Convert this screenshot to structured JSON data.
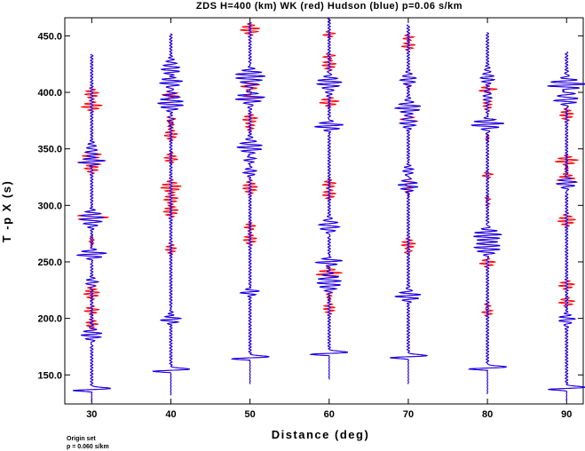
{
  "chart_data": {
    "type": "line",
    "title": "ZDS H=400 (km) WK (red) Hudson (blue) p=0.06 s/km",
    "xlabel": "Distance (deg)",
    "ylabel": "T -p X (s)",
    "xlim": [
      26.6,
      92.1
    ],
    "ylim": [
      124.3,
      466.0
    ],
    "xticks": [
      30,
      40,
      50,
      60,
      70,
      80,
      90
    ],
    "xtick_labels": [
      "30",
      "40",
      "50",
      "60",
      "70",
      "80",
      "90"
    ],
    "yticks": [
      150,
      200,
      250,
      300,
      350,
      400,
      450
    ],
    "ytick_labels": [
      "150.0",
      "200.0",
      "250.0",
      "300.0",
      "350.0",
      "400.0",
      "450.0"
    ],
    "grid": false,
    "series": [
      {
        "name": "WK",
        "color": "#ff0000"
      },
      {
        "name": "Hudson",
        "color": "#0000ff"
      }
    ],
    "traces": [
      {
        "distance": 30,
        "t_start": 126,
        "t_end": 434,
        "first_arrival": 136
      },
      {
        "distance": 40,
        "t_start": 132,
        "t_end": 452,
        "first_arrival": 153
      },
      {
        "distance": 50,
        "t_start": 142,
        "t_end": 462,
        "first_arrival": 164
      },
      {
        "distance": 60,
        "t_start": 146,
        "t_end": 466,
        "first_arrival": 168
      },
      {
        "distance": 70,
        "t_start": 142,
        "t_end": 460,
        "first_arrival": 165
      },
      {
        "distance": 80,
        "t_start": 133,
        "t_end": 453,
        "first_arrival": 155
      },
      {
        "distance": 90,
        "t_start": 127,
        "t_end": 436,
        "first_arrival": 137
      }
    ],
    "footnote": [
      "Origin set",
      "p = 0.060 s/km"
    ]
  }
}
